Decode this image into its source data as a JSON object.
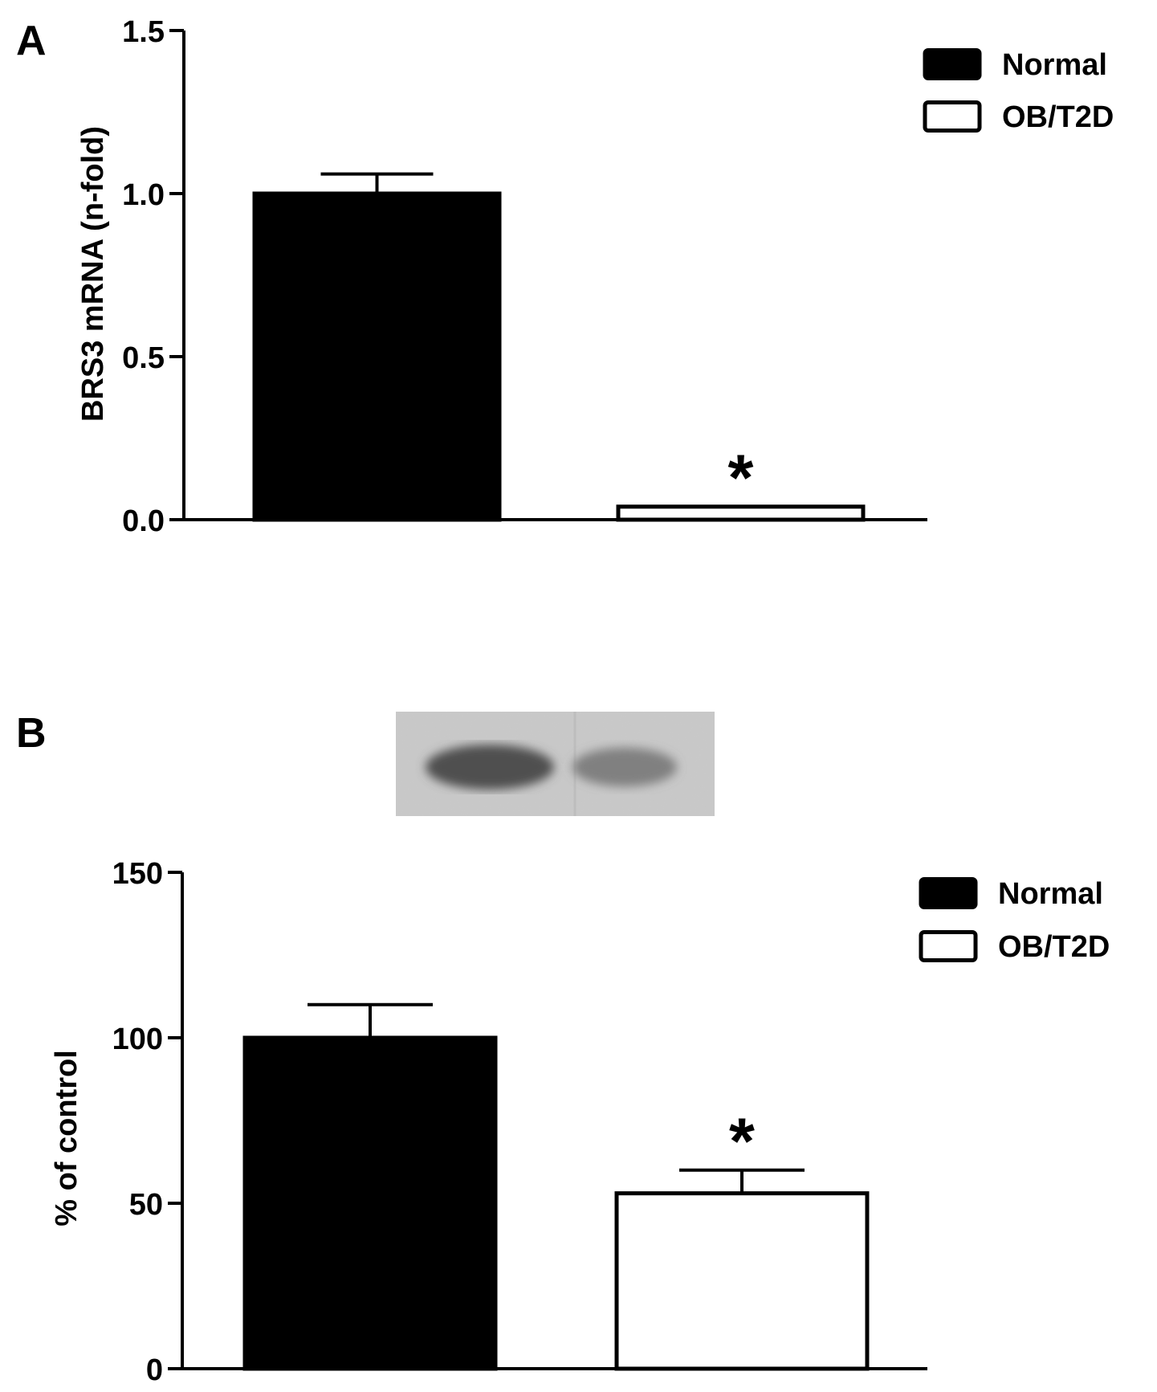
{
  "chart_data": [
    {
      "type": "bar",
      "panel_label": "A",
      "categories": [
        "Normal",
        "OB/T2D"
      ],
      "values": [
        1.0,
        0.04
      ],
      "errors": [
        0.06,
        0.0
      ],
      "significance": [
        "",
        "*"
      ],
      "ylabel": "BRS3 mRNA (n-fold)",
      "ylim": [
        0,
        1.5
      ],
      "yticks": [
        "0.0",
        "0.5",
        "1.0",
        "1.5"
      ],
      "legend": {
        "placement": "top-right",
        "entries": [
          "Normal",
          "OB/T2D"
        ]
      },
      "bar_colors": [
        "#000000",
        "#ffffff"
      ],
      "grid": false
    },
    {
      "type": "bar",
      "panel_label": "B",
      "categories": [
        "Normal",
        "OB/T2D"
      ],
      "values": [
        100,
        53
      ],
      "errors": [
        10,
        7
      ],
      "significance": [
        "",
        "*"
      ],
      "ylabel": "% of control",
      "ylim": [
        0,
        150
      ],
      "yticks": [
        "0",
        "50",
        "100",
        "150"
      ],
      "legend": {
        "placement": "top-right",
        "entries": [
          "Normal",
          "OB/T2D"
        ]
      },
      "bar_colors": [
        "#000000",
        "#ffffff"
      ],
      "grid": false,
      "blot_image": {
        "lanes": 2,
        "band_intensity": [
          1.0,
          0.55
        ]
      }
    }
  ]
}
